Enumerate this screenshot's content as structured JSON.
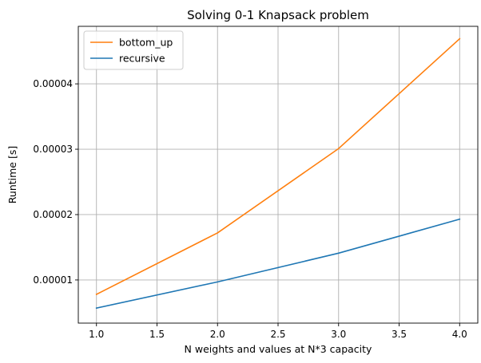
{
  "chart_data": {
    "type": "line",
    "title": "Solving 0-1 Knapsack problem",
    "xlabel": "N weights and values at N*3 capacity",
    "ylabel": "Runtime [s]",
    "x": [
      1.0,
      2.0,
      3.0,
      4.0
    ],
    "xlim": [
      0.85,
      4.15
    ],
    "ylim": [
      3.4e-06,
      4.88e-05
    ],
    "x_ticks": [
      1.0,
      1.5,
      2.0,
      2.5,
      3.0,
      3.5,
      4.0
    ],
    "x_tick_labels": [
      "1.0",
      "1.5",
      "2.0",
      "2.5",
      "3.0",
      "3.5",
      "4.0"
    ],
    "y_ticks": [
      1e-05,
      2e-05,
      3e-05,
      4e-05
    ],
    "y_tick_labels": [
      "0.00001",
      "0.00002",
      "0.00003",
      "0.00004"
    ],
    "grid": true,
    "legend_position": "upper-left",
    "series": [
      {
        "name": "bottom_up",
        "color": "#ff7f0e",
        "values": [
          7.8e-06,
          1.72e-05,
          3.01e-05,
          4.69e-05
        ]
      },
      {
        "name": "recursive",
        "color": "#1f77b4",
        "values": [
          5.7e-06,
          9.7e-06,
          1.41e-05,
          1.93e-05
        ]
      }
    ]
  }
}
